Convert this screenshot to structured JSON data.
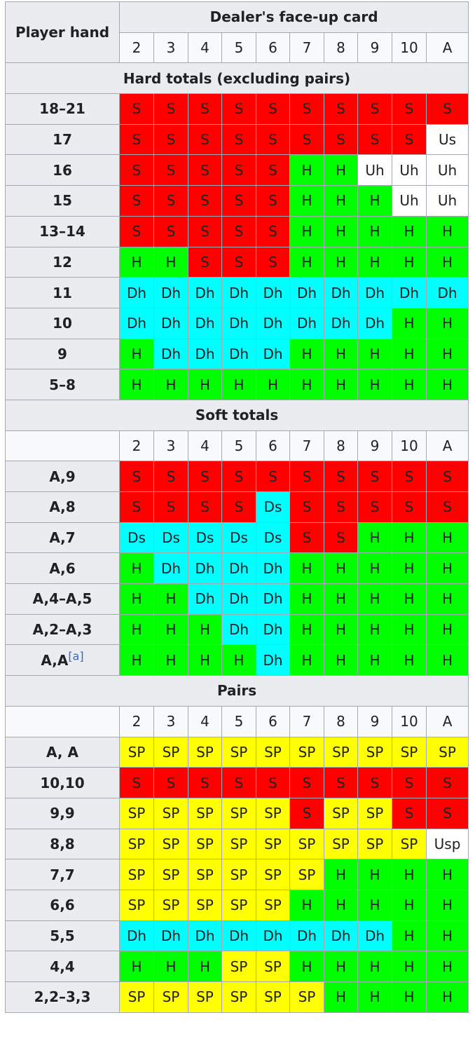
{
  "header": {
    "player_hand": "Player hand",
    "dealer_card": "Dealer's face-up card",
    "cards": [
      "2",
      "3",
      "4",
      "5",
      "6",
      "7",
      "8",
      "9",
      "10",
      "A"
    ]
  },
  "cell_colors": {
    "S": "#ff0000",
    "H": "#00ff00",
    "Dh": "#00ffff",
    "Ds": "#00ffff",
    "SP": "#ffff00",
    "Us": "#ffffff",
    "Uh": "#ffffff",
    "Usp": "#ffffff"
  },
  "sections": [
    {
      "title": "Hard totals (excluding pairs)",
      "rows": [
        {
          "label": "18–21",
          "cells": [
            "S",
            "S",
            "S",
            "S",
            "S",
            "S",
            "S",
            "S",
            "S",
            "S"
          ]
        },
        {
          "label": "17",
          "cells": [
            "S",
            "S",
            "S",
            "S",
            "S",
            "S",
            "S",
            "S",
            "S",
            "Us"
          ]
        },
        {
          "label": "16",
          "cells": [
            "S",
            "S",
            "S",
            "S",
            "S",
            "H",
            "H",
            "Uh",
            "Uh",
            "Uh"
          ]
        },
        {
          "label": "15",
          "cells": [
            "S",
            "S",
            "S",
            "S",
            "S",
            "H",
            "H",
            "H",
            "Uh",
            "Uh"
          ]
        },
        {
          "label": "13–14",
          "cells": [
            "S",
            "S",
            "S",
            "S",
            "S",
            "H",
            "H",
            "H",
            "H",
            "H"
          ]
        },
        {
          "label": "12",
          "cells": [
            "H",
            "H",
            "S",
            "S",
            "S",
            "H",
            "H",
            "H",
            "H",
            "H"
          ]
        },
        {
          "label": "11",
          "cells": [
            "Dh",
            "Dh",
            "Dh",
            "Dh",
            "Dh",
            "Dh",
            "Dh",
            "Dh",
            "Dh",
            "Dh"
          ]
        },
        {
          "label": "10",
          "cells": [
            "Dh",
            "Dh",
            "Dh",
            "Dh",
            "Dh",
            "Dh",
            "Dh",
            "Dh",
            "H",
            "H"
          ]
        },
        {
          "label": "9",
          "cells": [
            "H",
            "Dh",
            "Dh",
            "Dh",
            "Dh",
            "H",
            "H",
            "H",
            "H",
            "H"
          ]
        },
        {
          "label": "5–8",
          "cells": [
            "H",
            "H",
            "H",
            "H",
            "H",
            "H",
            "H",
            "H",
            "H",
            "H"
          ]
        }
      ]
    },
    {
      "title": "Soft totals",
      "cards": [
        "2",
        "3",
        "4",
        "5",
        "6",
        "7",
        "8",
        "9",
        "10",
        "A"
      ],
      "rows": [
        {
          "label": "A,9",
          "cells": [
            "S",
            "S",
            "S",
            "S",
            "S",
            "S",
            "S",
            "S",
            "S",
            "S"
          ]
        },
        {
          "label": "A,8",
          "cells": [
            "S",
            "S",
            "S",
            "S",
            "Ds",
            "S",
            "S",
            "S",
            "S",
            "S"
          ]
        },
        {
          "label": "A,7",
          "cells": [
            "Ds",
            "Ds",
            "Ds",
            "Ds",
            "Ds",
            "S",
            "S",
            "H",
            "H",
            "H"
          ]
        },
        {
          "label": "A,6",
          "cells": [
            "H",
            "Dh",
            "Dh",
            "Dh",
            "Dh",
            "H",
            "H",
            "H",
            "H",
            "H"
          ]
        },
        {
          "label": "A,4–A,5",
          "cells": [
            "H",
            "H",
            "Dh",
            "Dh",
            "Dh",
            "H",
            "H",
            "H",
            "H",
            "H"
          ]
        },
        {
          "label": "A,2–A,3",
          "cells": [
            "H",
            "H",
            "H",
            "Dh",
            "Dh",
            "H",
            "H",
            "H",
            "H",
            "H"
          ]
        },
        {
          "label": "A,A",
          "note": "[a]",
          "cells": [
            "H",
            "H",
            "H",
            "H",
            "Dh",
            "H",
            "H",
            "H",
            "H",
            "H"
          ]
        }
      ]
    },
    {
      "title": "Pairs",
      "cards": [
        "2",
        "3",
        "4",
        "5",
        "6",
        "7",
        "8",
        "9",
        "10",
        "A"
      ],
      "rows": [
        {
          "label": "A, A",
          "cells": [
            "SP",
            "SP",
            "SP",
            "SP",
            "SP",
            "SP",
            "SP",
            "SP",
            "SP",
            "SP"
          ]
        },
        {
          "label": "10,10",
          "cells": [
            "S",
            "S",
            "S",
            "S",
            "S",
            "S",
            "S",
            "S",
            "S",
            "S"
          ]
        },
        {
          "label": "9,9",
          "cells": [
            "SP",
            "SP",
            "SP",
            "SP",
            "SP",
            "S",
            "SP",
            "SP",
            "S",
            "S"
          ]
        },
        {
          "label": "8,8",
          "cells": [
            "SP",
            "SP",
            "SP",
            "SP",
            "SP",
            "SP",
            "SP",
            "SP",
            "SP",
            "Usp"
          ]
        },
        {
          "label": "7,7",
          "cells": [
            "SP",
            "SP",
            "SP",
            "SP",
            "SP",
            "SP",
            "H",
            "H",
            "H",
            "H"
          ]
        },
        {
          "label": "6,6",
          "cells": [
            "SP",
            "SP",
            "SP",
            "SP",
            "SP",
            "H",
            "H",
            "H",
            "H",
            "H"
          ]
        },
        {
          "label": "5,5",
          "cells": [
            "Dh",
            "Dh",
            "Dh",
            "Dh",
            "Dh",
            "Dh",
            "Dh",
            "Dh",
            "H",
            "H"
          ]
        },
        {
          "label": "4,4",
          "cells": [
            "H",
            "H",
            "H",
            "SP",
            "SP",
            "H",
            "H",
            "H",
            "H",
            "H"
          ]
        },
        {
          "label": "2,2–3,3",
          "cells": [
            "SP",
            "SP",
            "SP",
            "SP",
            "SP",
            "SP",
            "H",
            "H",
            "H",
            "H"
          ]
        }
      ]
    }
  ]
}
